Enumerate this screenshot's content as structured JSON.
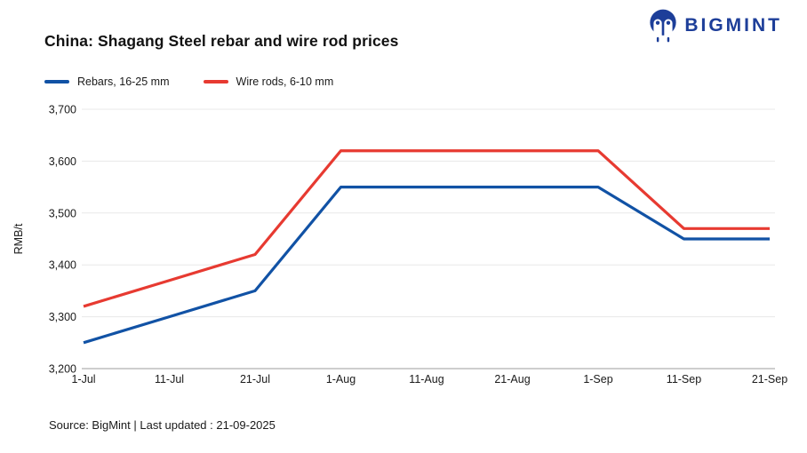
{
  "header": {
    "title": "China: Shagang Steel rebar and wire rod prices"
  },
  "brand": {
    "name": "BIGMINT",
    "color": "#1d3e99",
    "icon": "bigmint-logo-icon"
  },
  "chart_data": {
    "type": "line",
    "categories": [
      "1-Jul",
      "11-Jul",
      "21-Jul",
      "1-Aug",
      "11-Aug",
      "21-Aug",
      "1-Sep",
      "11-Sep",
      "21-Sep"
    ],
    "series": [
      {
        "name": "Rebars, 16-25 mm",
        "color": "#1152a5",
        "values": [
          3250,
          3300,
          3350,
          3550,
          3550,
          3550,
          3550,
          3450,
          3450
        ]
      },
      {
        "name": "Wire rods, 6-10 mm",
        "color": "#e73a31",
        "values": [
          3320,
          3370,
          3420,
          3620,
          3620,
          3620,
          3620,
          3470,
          3470
        ]
      }
    ],
    "title": "China: Shagang Steel rebar and wire rod prices",
    "xlabel": "",
    "ylabel": "RMB/t",
    "ylim": [
      3200,
      3700
    ],
    "ytick_step": 100,
    "grid": true,
    "legend_position": "top-left",
    "axis_colors": {
      "gridline": "#e8e8e8",
      "baseline": "#9c9c9c",
      "tick_text": "#1a1a1a"
    }
  },
  "footer": {
    "source": "Source: BigMint | Last updated : 21-09-2025"
  }
}
